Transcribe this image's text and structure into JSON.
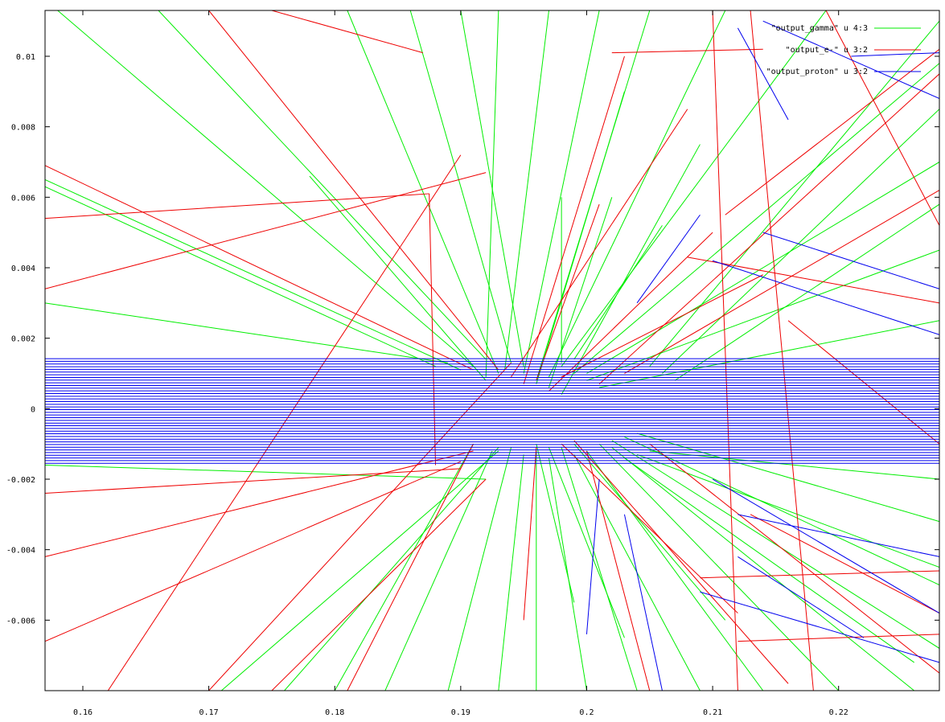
{
  "chart_data": {
    "type": "line",
    "title": "",
    "xlabel": "",
    "ylabel": "",
    "xlim": [
      0.157,
      0.228
    ],
    "ylim": [
      -0.008,
      0.0113
    ],
    "x_ticks": [
      {
        "value": 0.16,
        "label": "0.16"
      },
      {
        "value": 0.17,
        "label": "0.17"
      },
      {
        "value": 0.18,
        "label": "0.18"
      },
      {
        "value": 0.19,
        "label": "0.19"
      },
      {
        "value": 0.2,
        "label": "0.2"
      },
      {
        "value": 0.21,
        "label": "0.21"
      },
      {
        "value": 0.22,
        "label": "0.22"
      }
    ],
    "y_ticks": [
      {
        "value": 0.01,
        "label": "0.01"
      },
      {
        "value": 0.008,
        "label": "0.008"
      },
      {
        "value": 0.006,
        "label": "0.006"
      },
      {
        "value": 0.004,
        "label": "0.004"
      },
      {
        "value": 0.002,
        "label": "0.002"
      },
      {
        "value": 0,
        "label": "0"
      },
      {
        "value": -0.002,
        "label": "-0.002"
      },
      {
        "value": -0.004,
        "label": "-0.004"
      },
      {
        "value": -0.006,
        "label": "-0.006"
      }
    ],
    "grid": false,
    "legend_position": "top-right",
    "series": [
      {
        "name": "\"output_gamma\" u 4:3",
        "color": "#00ee00",
        "segments": [
          [
            [
              0.158,
              0.0113
            ],
            [
              0.191,
              0.0012
            ]
          ],
          [
            [
              0.157,
              0.0065
            ],
            [
              0.19,
              0.0011
            ]
          ],
          [
            [
              0.157,
              0.0063
            ],
            [
              0.188,
              0.0012
            ]
          ],
          [
            [
              0.166,
              0.0113
            ],
            [
              0.192,
              0.0014
            ]
          ],
          [
            [
              0.157,
              0.003
            ],
            [
              0.189,
              0.0013
            ]
          ],
          [
            [
              0.157,
              -0.0016
            ],
            [
              0.192,
              -0.002
            ]
          ],
          [
            [
              0.192,
              0.0009
            ],
            [
              0.193,
              0.0113
            ]
          ],
          [
            [
              0.1935,
              0.0011
            ],
            [
              0.197,
              0.0113
            ]
          ],
          [
            [
              0.195,
              0.001
            ],
            [
              0.201,
              0.0113
            ]
          ],
          [
            [
              0.196,
              0.0008
            ],
            [
              0.205,
              0.0113
            ]
          ],
          [
            [
              0.197,
              0.0009
            ],
            [
              0.211,
              0.0113
            ]
          ],
          [
            [
              0.198,
              0.0012
            ],
            [
              0.219,
              0.0113
            ]
          ],
          [
            [
              0.199,
              0.001
            ],
            [
              0.228,
              0.0098
            ]
          ],
          [
            [
              0.2,
              0.001
            ],
            [
              0.228,
              0.007
            ]
          ],
          [
            [
              0.2,
              0.0008
            ],
            [
              0.228,
              0.0045
            ]
          ],
          [
            [
              0.201,
              0.0006
            ],
            [
              0.228,
              0.0025
            ]
          ],
          [
            [
              0.194,
              0.0013
            ],
            [
              0.186,
              0.0113
            ]
          ],
          [
            [
              0.195,
              0.0012
            ],
            [
              0.19,
              0.0113
            ]
          ],
          [
            [
              0.193,
              0.001
            ],
            [
              0.181,
              0.0113
            ]
          ],
          [
            [
              0.196,
              0.0007
            ],
            [
              0.203,
              0.009
            ]
          ],
          [
            [
              0.197,
              0.0006
            ],
            [
              0.202,
              0.006
            ]
          ],
          [
            [
              0.198,
              0.0004
            ],
            [
              0.209,
              0.0075
            ]
          ],
          [
            [
              0.192,
              0.0008
            ],
            [
              0.178,
              0.0066
            ]
          ],
          [
            [
              0.191,
              -0.001
            ],
            [
              0.18,
              -0.008
            ]
          ],
          [
            [
              0.1925,
              -0.0012
            ],
            [
              0.184,
              -0.008
            ]
          ],
          [
            [
              0.194,
              -0.0011
            ],
            [
              0.189,
              -0.008
            ]
          ],
          [
            [
              0.195,
              -0.0013
            ],
            [
              0.193,
              -0.008
            ]
          ],
          [
            [
              0.196,
              -0.0012
            ],
            [
              0.196,
              -0.008
            ]
          ],
          [
            [
              0.197,
              -0.0014
            ],
            [
              0.2,
              -0.008
            ]
          ],
          [
            [
              0.198,
              -0.0011
            ],
            [
              0.204,
              -0.008
            ]
          ],
          [
            [
              0.199,
              -0.0013
            ],
            [
              0.209,
              -0.008
            ]
          ],
          [
            [
              0.2,
              -0.0012
            ],
            [
              0.214,
              -0.008
            ]
          ],
          [
            [
              0.201,
              -0.001
            ],
            [
              0.22,
              -0.008
            ]
          ],
          [
            [
              0.202,
              -0.0011
            ],
            [
              0.226,
              -0.008
            ]
          ],
          [
            [
              0.202,
              -0.0009
            ],
            [
              0.228,
              -0.0068
            ]
          ],
          [
            [
              0.203,
              -0.0008
            ],
            [
              0.228,
              -0.005
            ]
          ],
          [
            [
              0.204,
              -0.0007
            ],
            [
              0.228,
              -0.0032
            ]
          ],
          [
            [
              0.193,
              -0.0011
            ],
            [
              0.176,
              -0.008
            ]
          ],
          [
            [
              0.193,
              -0.0012
            ],
            [
              0.171,
              -0.008
            ]
          ],
          [
            [
              0.196,
              -0.001
            ],
            [
              0.199,
              -0.0055
            ]
          ],
          [
            [
              0.197,
              -0.0011
            ],
            [
              0.203,
              -0.0065
            ]
          ],
          [
            [
              0.199,
              -0.001
            ],
            [
              0.211,
              -0.006
            ]
          ],
          [
            [
              0.198,
              0.0013
            ],
            [
              0.198,
              0.006
            ]
          ],
          [
            [
              0.199,
              0.0014
            ],
            [
              0.206,
              0.0052
            ]
          ],
          [
            [
              0.205,
              0.0012
            ],
            [
              0.228,
              0.011
            ]
          ],
          [
            [
              0.206,
              0.001
            ],
            [
              0.228,
              0.0085
            ]
          ],
          [
            [
              0.207,
              0.0008
            ],
            [
              0.228,
              0.0058
            ]
          ],
          [
            [
              0.204,
              -0.0013
            ],
            [
              0.228,
              -0.0045
            ]
          ],
          [
            [
              0.205,
              -0.0012
            ],
            [
              0.228,
              -0.002
            ]
          ],
          [
            [
              0.203,
              -0.0014
            ],
            [
              0.226,
              -0.0072
            ]
          ]
        ]
      },
      {
        "name": "\"output_e-\" u 3:2",
        "color": "#ee0000",
        "segments": [
          [
            [
              0.157,
              0.0054
            ],
            [
              0.1875,
              0.0061
            ]
          ],
          [
            [
              0.1875,
              0.0061
            ],
            [
              0.188,
              -0.0016
            ]
          ],
          [
            [
              0.157,
              0.0069
            ],
            [
              0.191,
              0.0011
            ]
          ],
          [
            [
              0.157,
              0.0034
            ],
            [
              0.192,
              0.0067
            ]
          ],
          [
            [
              0.157,
              -0.0024
            ],
            [
              0.19,
              -0.0017
            ]
          ],
          [
            [
              0.157,
              -0.0042
            ],
            [
              0.191,
              -0.0012
            ]
          ],
          [
            [
              0.157,
              -0.0066
            ],
            [
              0.19,
              -0.0015
            ]
          ],
          [
            [
              0.162,
              -0.008
            ],
            [
              0.19,
              0.0072
            ]
          ],
          [
            [
              0.17,
              -0.008
            ],
            [
              0.194,
              0.0013
            ]
          ],
          [
            [
              0.175,
              -0.008
            ],
            [
              0.192,
              -0.002
            ]
          ],
          [
            [
              0.17,
              0.0113
            ],
            [
              0.193,
              0.0011
            ]
          ],
          [
            [
              0.175,
              0.0113
            ],
            [
              0.187,
              0.0101
            ]
          ],
          [
            [
              0.181,
              -0.008
            ],
            [
              0.191,
              -0.001
            ]
          ],
          [
            [
              0.194,
              0.0009
            ],
            [
              0.208,
              0.0085
            ]
          ],
          [
            [
              0.195,
              0.0007
            ],
            [
              0.203,
              0.01
            ]
          ],
          [
            [
              0.196,
              0.0008
            ],
            [
              0.201,
              0.0058
            ]
          ],
          [
            [
              0.197,
              0.0005
            ],
            [
              0.21,
              0.005
            ]
          ],
          [
            [
              0.198,
              0.0009
            ],
            [
              0.214,
              0.0038
            ]
          ],
          [
            [
              0.198,
              -0.001
            ],
            [
              0.212,
              -0.0058
            ]
          ],
          [
            [
              0.199,
              -0.0009
            ],
            [
              0.216,
              -0.0078
            ]
          ],
          [
            [
              0.2,
              -0.0012
            ],
            [
              0.205,
              -0.008
            ]
          ],
          [
            [
              0.196,
              -0.0011
            ],
            [
              0.195,
              -0.006
            ]
          ],
          [
            [
              0.201,
              0.0007
            ],
            [
              0.228,
              0.0095
            ]
          ],
          [
            [
              0.203,
              0.001
            ],
            [
              0.228,
              0.0062
            ]
          ],
          [
            [
              0.205,
              -0.001
            ],
            [
              0.228,
              -0.0075
            ]
          ],
          [
            [
              0.21,
              0.0113
            ],
            [
              0.212,
              -0.008
            ]
          ],
          [
            [
              0.213,
              0.0113
            ],
            [
              0.218,
              -0.008
            ]
          ],
          [
            [
              0.209,
              -0.0048
            ],
            [
              0.228,
              -0.0046
            ]
          ],
          [
            [
              0.208,
              0.0043
            ],
            [
              0.228,
              0.003
            ]
          ],
          [
            [
              0.211,
              0.0055
            ],
            [
              0.228,
              0.0102
            ]
          ],
          [
            [
              0.213,
              -0.003
            ],
            [
              0.228,
              -0.0058
            ]
          ],
          [
            [
              0.216,
              0.0025
            ],
            [
              0.228,
              -0.001
            ]
          ],
          [
            [
              0.202,
              0.0101
            ],
            [
              0.214,
              0.0102
            ]
          ],
          [
            [
              0.212,
              -0.0066
            ],
            [
              0.228,
              -0.0064
            ]
          ],
          [
            [
              0.219,
              0.0113
            ],
            [
              0.228,
              0.0052
            ]
          ]
        ]
      },
      {
        "name": "\"output_proton\" u 3:2",
        "color": "#0000ee",
        "beam_band": {
          "x_start": 0.157,
          "x_end": 0.228,
          "y_min": -0.00155,
          "y_max": 0.00142,
          "count": 40
        },
        "segments": [
          [
            [
              0.214,
              0.011
            ],
            [
              0.228,
              0.0088
            ]
          ],
          [
            [
              0.212,
              0.0108
            ],
            [
              0.216,
              0.0082
            ]
          ],
          [
            [
              0.214,
              0.005
            ],
            [
              0.228,
              0.0034
            ]
          ],
          [
            [
              0.21,
              0.0042
            ],
            [
              0.228,
              0.0021
            ]
          ],
          [
            [
              0.204,
              0.003
            ],
            [
              0.209,
              0.0055
            ]
          ],
          [
            [
              0.21,
              -0.002
            ],
            [
              0.228,
              -0.0058
            ]
          ],
          [
            [
              0.212,
              -0.003
            ],
            [
              0.228,
              -0.0042
            ]
          ],
          [
            [
              0.209,
              -0.0052
            ],
            [
              0.228,
              -0.0072
            ]
          ],
          [
            [
              0.203,
              -0.003
            ],
            [
              0.206,
              -0.008
            ]
          ],
          [
            [
              0.201,
              -0.002
            ],
            [
              0.2,
              -0.0064
            ]
          ],
          [
            [
              0.221,
              0.01
            ],
            [
              0.228,
              0.0101
            ]
          ],
          [
            [
              0.212,
              -0.0042
            ],
            [
              0.222,
              -0.0065
            ]
          ]
        ]
      }
    ]
  }
}
